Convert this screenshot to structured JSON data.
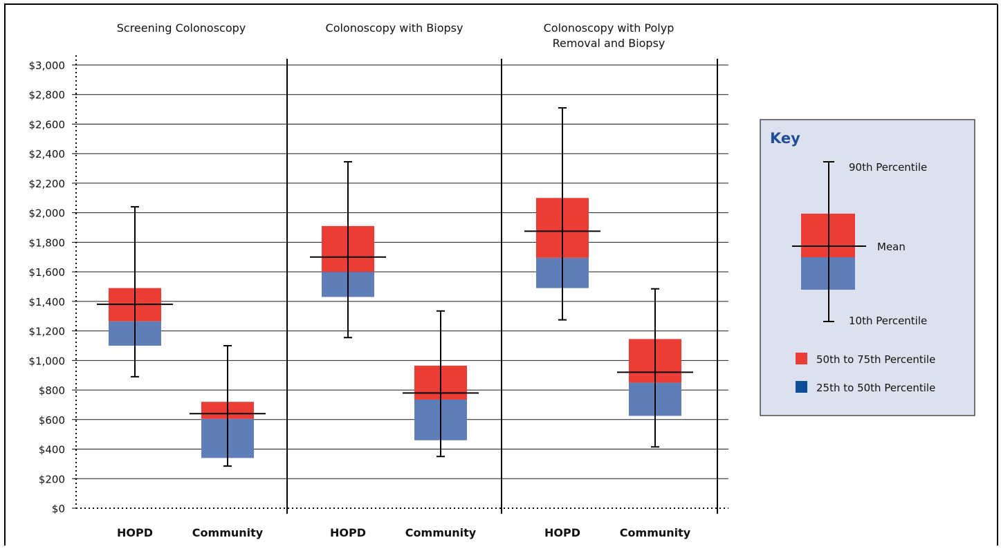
{
  "chart_data": {
    "type": "box",
    "ylim": [
      0,
      3000
    ],
    "yticks": [
      0,
      200,
      400,
      600,
      800,
      1000,
      1200,
      1400,
      1600,
      1800,
      2000,
      2200,
      2400,
      2600,
      2800,
      3000
    ],
    "ytick_labels": [
      "$0",
      "$200",
      "$400",
      "$600",
      "$800",
      "$1,000",
      "$1,200",
      "$1,400",
      "$1,600",
      "$1,800",
      "$2,000",
      "$2,200",
      "$2,400",
      "$2,600",
      "$2,800",
      "$3,000"
    ],
    "grid": true,
    "legend_position": "right",
    "colors": {
      "p50_75": "#ea3d35",
      "p25_50": "#5f7db6",
      "legend_p25_50": "#0e4f9a",
      "key_bg": "#dde1ef",
      "key_title": "#1f4e97"
    },
    "panels": [
      {
        "title_lines": [
          "Screening Colonoscopy"
        ],
        "boxes": [
          {
            "category": "HOPD",
            "p10": 890,
            "p25": 1100,
            "p50": 1265,
            "p75": 1490,
            "p90": 2040,
            "mean": 1380
          },
          {
            "category": "Community",
            "p10": 285,
            "p25": 340,
            "p50": 605,
            "p75": 720,
            "p90": 1100,
            "mean": 640
          }
        ]
      },
      {
        "title_lines": [
          "Colonoscopy with Biopsy"
        ],
        "boxes": [
          {
            "category": "HOPD",
            "p10": 1155,
            "p25": 1430,
            "p50": 1600,
            "p75": 1910,
            "p90": 2345,
            "mean": 1700
          },
          {
            "category": "Community",
            "p10": 350,
            "p25": 460,
            "p50": 735,
            "p75": 965,
            "p90": 1335,
            "mean": 780
          }
        ]
      },
      {
        "title_lines": [
          "Colonoscopy with Polyp",
          "Removal and Biopsy"
        ],
        "boxes": [
          {
            "category": "HOPD",
            "p10": 1275,
            "p25": 1490,
            "p50": 1695,
            "p75": 2100,
            "p90": 2710,
            "mean": 1875
          },
          {
            "category": "Community",
            "p10": 415,
            "p25": 625,
            "p50": 850,
            "p75": 1145,
            "p90": 1485,
            "mean": 920
          }
        ]
      }
    ]
  },
  "key": {
    "title": "Key",
    "p90_label": "90th Percentile",
    "mean_label": "Mean",
    "p10_label": "10th Percentile",
    "p50_75_label": "50th to 75th Percentile",
    "p25_50_label": "25th to 50th Percentile"
  }
}
